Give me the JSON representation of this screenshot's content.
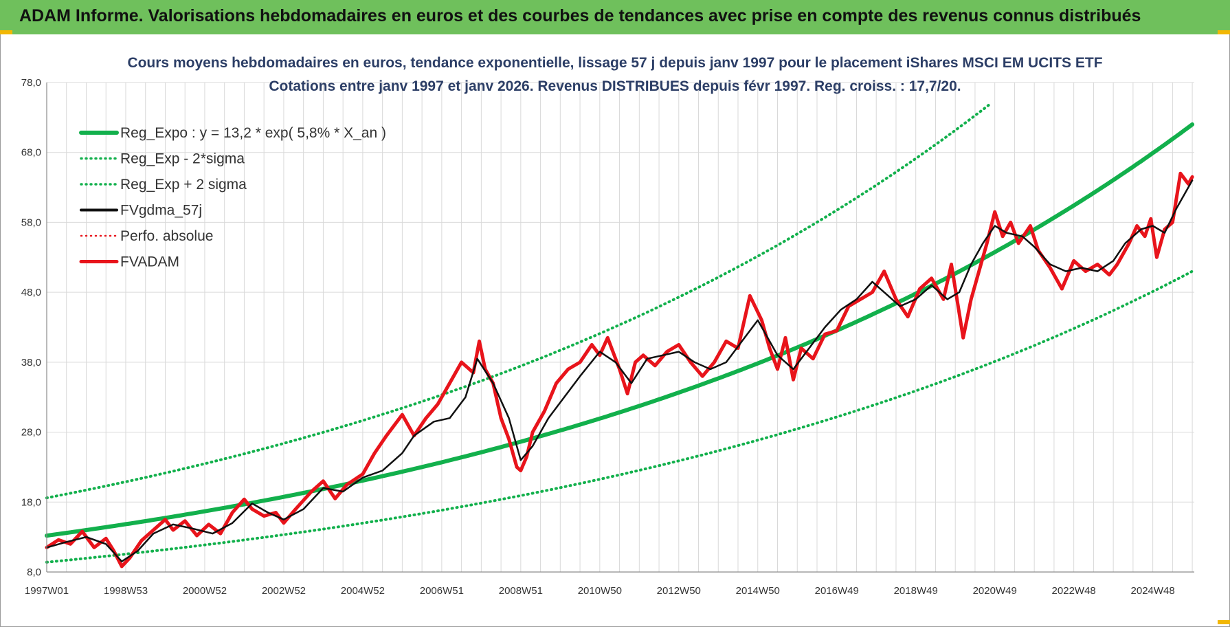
{
  "banner": {
    "title": "ADAM Informe. Valorisations hebdomadaires en euros et des courbes de tendances avec prise en compte des revenus connus distribués"
  },
  "colors": {
    "banner_bg": "#6fc05c",
    "reg_green": "#12b04c",
    "perf_black": "#111111",
    "adam_red": "#e8141b",
    "title_blue": "#2c3e66",
    "grid": "#d9d9d9"
  },
  "chart_data": {
    "type": "line",
    "title_line1": "Cours moyens hebdomadaires en euros, tendance exponentielle, lissage 57 j depuis janv 1997 pour le placement iShares MSCI EM UCITS ETF",
    "title_line2": "Cotations entre janv 1997 et janv 2026. Revenus DISTRIBUES depuis févr 1997. Reg. croiss. : 17,7/20.",
    "xlabel": "",
    "ylabel": "",
    "ylim": [
      8,
      78
    ],
    "xlim": [
      1997.0,
      2026.05
    ],
    "y_ticks": [
      "8,0",
      "18,0",
      "28,0",
      "38,0",
      "48,0",
      "58,0",
      "68,0",
      "78,0"
    ],
    "y_tick_values": [
      8,
      18,
      28,
      38,
      48,
      58,
      68,
      78
    ],
    "x_ticks": [
      "1997W01",
      "1998W53",
      "2000W52",
      "2002W52",
      "2004W52",
      "2006W51",
      "2008W51",
      "2010W50",
      "2012W50",
      "2014W50",
      "2016W49",
      "2018W49",
      "2020W49",
      "2022W48",
      "2024W48"
    ],
    "x_tick_years": [
      1997.0,
      1999.0,
      2001.0,
      2003.0,
      2005.0,
      2007.0,
      2009.0,
      2011.0,
      2013.0,
      2015.0,
      2017.0,
      2019.0,
      2021.0,
      2023.0,
      2025.0
    ],
    "legend": [
      {
        "label": "Reg_Expo : y = 13,2 * exp( 5,8% *  X_an )",
        "color": "#12b04c",
        "style": "solid",
        "width": 5
      },
      {
        "label": "Reg_Exp - 2*sigma",
        "color": "#12b04c",
        "style": "dotted",
        "width": 3.5
      },
      {
        "label": "Reg_Exp + 2 sigma",
        "color": "#12b04c",
        "style": "dotted",
        "width": 3.5
      },
      {
        "label": "FVgdma_57j",
        "color": "#111111",
        "style": "solid",
        "width": 3
      },
      {
        "label": "Perfo. absolue",
        "color": "#e8141b",
        "style": "dotted",
        "width": 2.5
      },
      {
        "label": "FVADAM",
        "color": "#e8141b",
        "style": "solid",
        "width": 4
      }
    ],
    "series": [
      {
        "name": "Reg_Expo",
        "x": [
          1997.0,
          2000.0,
          2003.0,
          2006.0,
          2009.0,
          2012.0,
          2015.0,
          2018.0,
          2021.0,
          2024.0,
          2026.0
        ],
        "values": [
          13.2,
          15.7,
          18.9,
          22.4,
          26.6,
          31.7,
          37.7,
          44.8,
          53.4,
          63.4,
          72.0
        ]
      },
      {
        "name": "Reg_Exp - 2*sigma",
        "x": [
          1997.0,
          2000.0,
          2003.0,
          2006.0,
          2009.0,
          2012.0,
          2015.0,
          2018.0,
          2021.0,
          2024.0,
          2026.0
        ],
        "values": [
          9.4,
          11.1,
          13.2,
          15.7,
          18.6,
          22.2,
          26.4,
          31.3,
          37.3,
          44.4,
          51.0
        ]
      },
      {
        "name": "Reg_Exp + 2 sigma",
        "x": [
          1997.0,
          2000.0,
          2003.0,
          2006.0,
          2009.0,
          2012.0,
          2015.0,
          2018.0,
          2020.9
        ],
        "values": [
          18.6,
          22.1,
          26.3,
          31.3,
          37.2,
          44.2,
          52.5,
          62.4,
          75.0
        ]
      },
      {
        "name": "FVgdma_57j",
        "x": [
          1997.0,
          1997.5,
          1998.0,
          1998.5,
          1998.9,
          1999.3,
          1999.7,
          2000.2,
          2000.7,
          2001.2,
          2001.7,
          2002.2,
          2002.6,
          2003.0,
          2003.5,
          2004.0,
          2004.5,
          2005.0,
          2005.5,
          2006.0,
          2006.3,
          2006.8,
          2007.2,
          2007.6,
          2007.9,
          2008.3,
          2008.7,
          2009.0,
          2009.3,
          2009.7,
          2010.1,
          2010.5,
          2011.0,
          2011.4,
          2011.8,
          2012.2,
          2012.6,
          2013.0,
          2013.4,
          2013.8,
          2014.2,
          2014.6,
          2015.0,
          2015.5,
          2015.9,
          2016.3,
          2016.7,
          2017.1,
          2017.5,
          2017.9,
          2018.3,
          2018.6,
          2019.0,
          2019.4,
          2019.8,
          2020.1,
          2020.4,
          2020.7,
          2021.0,
          2021.3,
          2021.7,
          2022.0,
          2022.4,
          2022.8,
          2023.2,
          2023.6,
          2024.0,
          2024.3,
          2024.7,
          2025.0,
          2025.3,
          2025.6,
          2026.0
        ],
        "values": [
          11.5,
          12.3,
          13.0,
          12.0,
          9.5,
          11.0,
          13.5,
          14.8,
          14.2,
          13.5,
          15.0,
          17.8,
          16.5,
          15.5,
          17.0,
          20.0,
          19.5,
          21.5,
          22.5,
          25.0,
          27.5,
          29.5,
          30.0,
          33.0,
          38.5,
          35.0,
          30.0,
          24.0,
          26.0,
          30.0,
          33.0,
          36.0,
          39.5,
          38.0,
          35.0,
          38.5,
          39.0,
          39.5,
          38.0,
          37.0,
          38.0,
          41.0,
          44.0,
          39.0,
          37.0,
          40.0,
          43.0,
          45.5,
          47.0,
          49.5,
          47.5,
          46.0,
          47.0,
          49.0,
          47.0,
          48.0,
          52.0,
          55.0,
          57.5,
          56.5,
          56.0,
          54.5,
          52.0,
          51.0,
          51.5,
          51.0,
          52.5,
          55.0,
          57.0,
          57.5,
          56.5,
          60.0,
          64.0
        ]
      },
      {
        "name": "FVADAM",
        "x": [
          1997.0,
          1997.3,
          1997.6,
          1997.9,
          1998.2,
          1998.5,
          1998.7,
          1998.9,
          1999.1,
          1999.4,
          1999.7,
          2000.0,
          2000.2,
          2000.5,
          2000.8,
          2001.1,
          2001.4,
          2001.7,
          2002.0,
          2002.2,
          2002.5,
          2002.8,
          2003.0,
          2003.3,
          2003.7,
          2004.0,
          2004.3,
          2004.6,
          2005.0,
          2005.3,
          2005.6,
          2006.0,
          2006.3,
          2006.6,
          2006.9,
          2007.2,
          2007.5,
          2007.8,
          2007.95,
          2008.1,
          2008.3,
          2008.5,
          2008.7,
          2008.9,
          2009.0,
          2009.15,
          2009.3,
          2009.6,
          2009.9,
          2010.2,
          2010.5,
          2010.8,
          2011.0,
          2011.2,
          2011.5,
          2011.7,
          2011.9,
          2012.1,
          2012.4,
          2012.7,
          2013.0,
          2013.3,
          2013.6,
          2013.9,
          2014.2,
          2014.5,
          2014.8,
          2015.1,
          2015.3,
          2015.5,
          2015.7,
          2015.9,
          2016.1,
          2016.4,
          2016.7,
          2017.0,
          2017.3,
          2017.6,
          2017.9,
          2018.2,
          2018.5,
          2018.8,
          2019.1,
          2019.4,
          2019.7,
          2019.9,
          2020.1,
          2020.2,
          2020.4,
          2020.6,
          2020.8,
          2021.0,
          2021.2,
          2021.4,
          2021.6,
          2021.9,
          2022.1,
          2022.4,
          2022.7,
          2023.0,
          2023.3,
          2023.6,
          2023.9,
          2024.1,
          2024.4,
          2024.6,
          2024.8,
          2024.95,
          2025.1,
          2025.3,
          2025.5,
          2025.7,
          2025.9,
          2026.0
        ],
        "values": [
          11.5,
          12.6,
          12.0,
          13.8,
          11.5,
          12.8,
          11.0,
          8.8,
          10.0,
          12.5,
          14.0,
          15.5,
          14.0,
          15.3,
          13.2,
          14.8,
          13.5,
          16.5,
          18.4,
          17.0,
          16.0,
          16.5,
          15.0,
          17.0,
          19.5,
          21.0,
          18.5,
          20.5,
          22.0,
          25.0,
          27.5,
          30.5,
          27.5,
          30.0,
          32.0,
          35.0,
          38.0,
          36.5,
          41.0,
          37.0,
          35.0,
          30.0,
          27.0,
          23.0,
          22.5,
          24.5,
          28.0,
          31.0,
          35.0,
          37.0,
          38.0,
          40.5,
          39.0,
          41.5,
          37.0,
          33.5,
          38.0,
          39.0,
          37.5,
          39.5,
          40.5,
          38.0,
          36.0,
          38.0,
          41.0,
          40.0,
          47.5,
          44.0,
          40.0,
          37.0,
          41.5,
          35.5,
          40.0,
          38.5,
          42.0,
          42.5,
          46.0,
          47.0,
          48.0,
          51.0,
          47.0,
          44.5,
          48.5,
          50.0,
          47.0,
          52.0,
          45.0,
          41.5,
          47.0,
          51.0,
          55.0,
          59.5,
          56.0,
          58.0,
          55.0,
          57.5,
          54.0,
          51.5,
          48.5,
          52.5,
          51.0,
          52.0,
          50.5,
          52.0,
          55.0,
          57.5,
          56.0,
          58.5,
          53.0,
          57.0,
          58.0,
          65.0,
          63.5,
          64.5
        ]
      }
    ]
  }
}
